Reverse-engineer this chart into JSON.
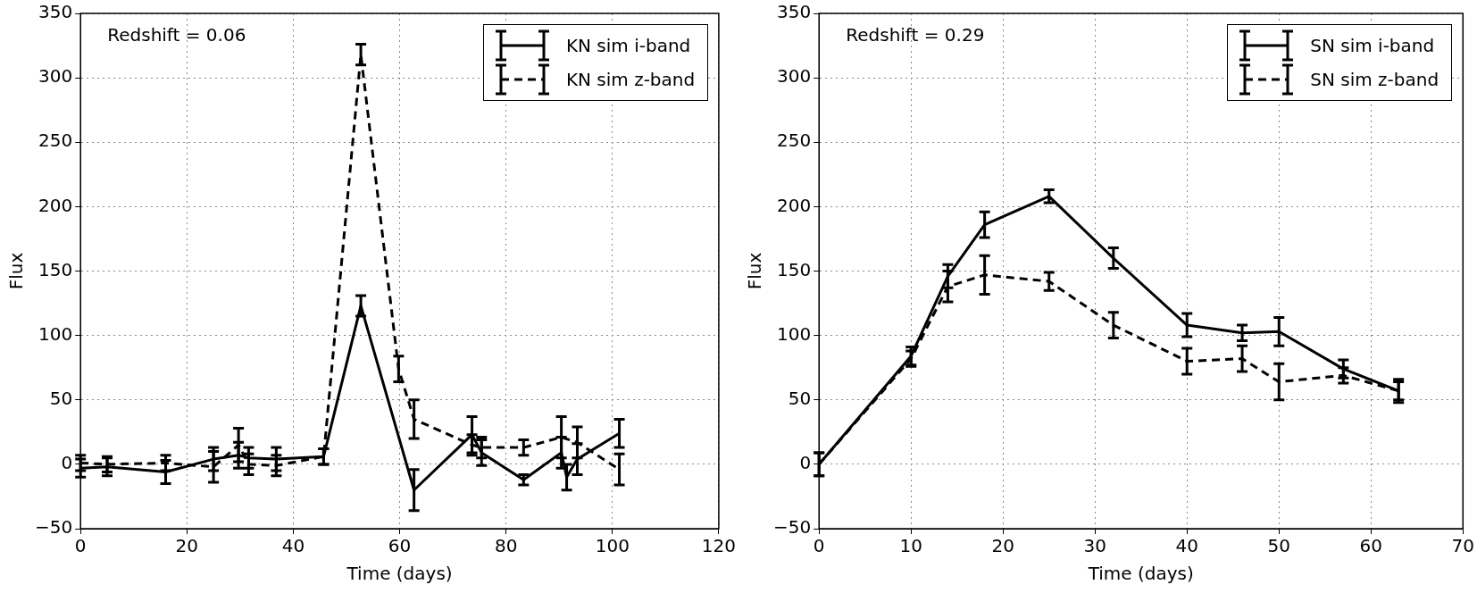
{
  "chart_data": [
    {
      "type": "line",
      "xlabel": "Time (days)",
      "ylabel": "Flux",
      "xlim": [
        0,
        120
      ],
      "xticks": [
        0,
        20,
        40,
        60,
        80,
        100,
        120
      ],
      "ylim": [
        -50,
        350
      ],
      "yticks": [
        {
          "value": -50,
          "label": "−50"
        },
        0,
        50,
        100,
        150,
        200,
        250,
        300,
        350
      ],
      "grid": true,
      "legend": "top right",
      "marker": "none",
      "annotations": [
        "Redshift = 0.06"
      ],
      "series": [
        {
          "name": "KN sim i-band",
          "color": "#000000",
          "line_style": "solid",
          "x": [
            0,
            5,
            16,
            25,
            29.7,
            31.6,
            36.8,
            45.7,
            52.7,
            62.7,
            73.6,
            75.4,
            83.3,
            90.4,
            91.4,
            93.4,
            101.3
          ],
          "values": [
            -3,
            -2,
            -6,
            4,
            7,
            5,
            4,
            6,
            123,
            -20,
            23,
            9,
            -12,
            9,
            -10,
            4,
            24
          ],
          "errors": [
            7,
            7,
            9,
            9,
            10,
            8,
            9,
            6,
            8,
            16,
            14,
            10,
            4,
            12,
            10,
            12,
            11
          ]
        },
        {
          "name": "KN sim z-band",
          "color": "#000000",
          "line_style": "dashed",
          "x": [
            0,
            5,
            16,
            25,
            29.7,
            31.6,
            36.8,
            45.7,
            52.7,
            59.8,
            62.7,
            73.6,
            75.4,
            83.3,
            90.4,
            93.4,
            101.3
          ],
          "values": [
            1,
            0,
            1,
            -2,
            15,
            0,
            -1,
            6,
            318,
            74,
            35,
            15,
            13,
            13,
            21,
            17,
            -4
          ],
          "errors": [
            6,
            6,
            6,
            12,
            13,
            8,
            8,
            6,
            8,
            10,
            15,
            8,
            8,
            6,
            16,
            12,
            12
          ]
        }
      ]
    },
    {
      "type": "line",
      "xlabel": "Time (days)",
      "ylabel": "Flux",
      "xlim": [
        0,
        70
      ],
      "xticks": [
        0,
        10,
        20,
        30,
        40,
        50,
        60,
        70
      ],
      "ylim": [
        -50,
        350
      ],
      "yticks": [
        {
          "value": -50,
          "label": "−50"
        },
        0,
        50,
        100,
        150,
        200,
        250,
        300,
        350
      ],
      "grid": true,
      "legend": "top right",
      "marker": "none",
      "annotations": [
        "Redshift = 0.29"
      ],
      "series": [
        {
          "name": "SN sim i-band",
          "color": "#000000",
          "line_style": "solid",
          "x": [
            0,
            10,
            14,
            18,
            25,
            32,
            40,
            46,
            50,
            57,
            63
          ],
          "values": [
            0,
            84,
            146,
            186,
            208,
            160,
            108,
            102,
            103,
            74,
            57
          ],
          "errors": [
            9,
            7,
            9,
            10,
            5,
            8,
            9,
            6,
            11,
            7,
            9
          ]
        },
        {
          "name": "SN sim z-band",
          "color": "#000000",
          "line_style": "dashed",
          "x": [
            0,
            10,
            14,
            18,
            25,
            32,
            40,
            46,
            50,
            57,
            63
          ],
          "values": [
            0,
            82,
            138,
            147,
            142,
            108,
            80,
            82,
            64,
            69,
            57
          ],
          "errors": [
            9,
            6,
            12,
            15,
            7,
            10,
            10,
            10,
            14,
            6,
            7
          ]
        }
      ]
    }
  ]
}
